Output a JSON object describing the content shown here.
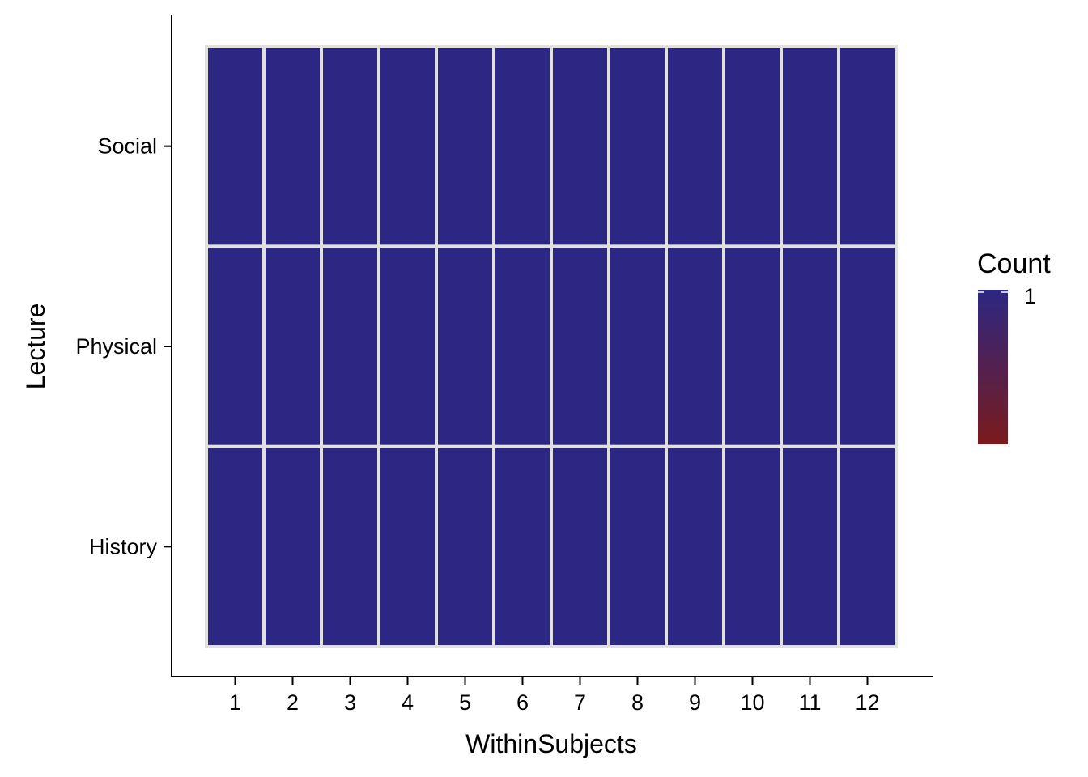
{
  "chart_data": {
    "type": "heatmap",
    "title": "",
    "xlabel": "WithinSubjects",
    "ylabel": "Lecture",
    "x_categories": [
      "1",
      "2",
      "3",
      "4",
      "5",
      "6",
      "7",
      "8",
      "9",
      "10",
      "11",
      "12"
    ],
    "y_categories": [
      "History",
      "Physical",
      "Social"
    ],
    "values": [
      [
        1,
        1,
        1,
        1,
        1,
        1,
        1,
        1,
        1,
        1,
        1,
        1
      ],
      [
        1,
        1,
        1,
        1,
        1,
        1,
        1,
        1,
        1,
        1,
        1,
        1
      ],
      [
        1,
        1,
        1,
        1,
        1,
        1,
        1,
        1,
        1,
        1,
        1,
        1
      ]
    ],
    "grid": false,
    "legend": {
      "title": "Count",
      "placement": "right",
      "labels": [
        "1"
      ],
      "low_color": "#7a1a1c",
      "high_color": "#2c2783"
    },
    "colors": {
      "cell_fill": "#2c2783",
      "cell_border": "#e0e0e0",
      "axis": "#000000"
    }
  }
}
